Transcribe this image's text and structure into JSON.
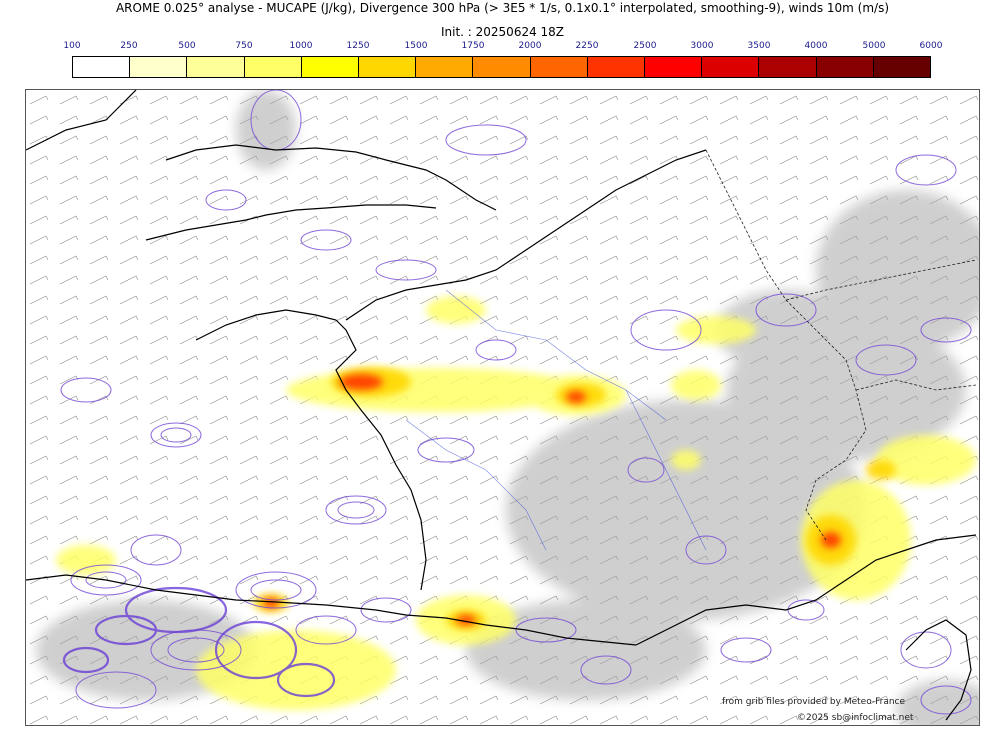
{
  "header": {
    "title": "AROME 0.025° analyse - MUCAPE (J/kg), Divergence 300 hPa (> 3E5 * 1/s, 0.1x0.1° interpolated, smoothing-9), winds 10m (m/s)",
    "init": "Init. : 20250624 18Z"
  },
  "colorbar": {
    "labels": [
      "100",
      "250",
      "500",
      "750",
      "1000",
      "1250",
      "1500",
      "1750",
      "2000",
      "2250",
      "2500",
      "3000",
      "3500",
      "4000",
      "5000",
      "6000"
    ],
    "colors": [
      "#ffffff",
      "#ffffcc",
      "#ffff99",
      "#ffff66",
      "#ffff00",
      "#ffd700",
      "#ffaa00",
      "#ff8c00",
      "#ff6600",
      "#ff3300",
      "#ff0000",
      "#dd0000",
      "#aa0000",
      "#880000",
      "#660000"
    ]
  },
  "credits": {
    "source": "from grib files provided by Meteo-France",
    "copyright": "©2025 sb@infoclimat.net"
  }
}
